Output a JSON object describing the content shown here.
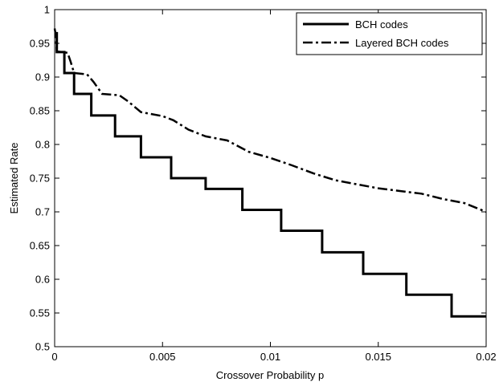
{
  "chart_data": {
    "type": "line",
    "title": "",
    "xlabel": "Crossover Probability p",
    "ylabel": "Estimated Rate",
    "xlim": [
      0,
      0.02
    ],
    "ylim": [
      0.5,
      1
    ],
    "x_ticks": [
      0,
      0.005,
      0.01,
      0.015,
      0.02
    ],
    "x_tick_labels": [
      "0",
      "0.005",
      "0.01",
      "0.015",
      "0.02"
    ],
    "y_ticks": [
      0.5,
      0.55,
      0.6,
      0.65,
      0.7,
      0.75,
      0.8,
      0.85,
      0.9,
      0.95,
      1
    ],
    "y_tick_labels": [
      "0.5",
      "0.55",
      "0.6",
      "0.65",
      "0.7",
      "0.75",
      "0.8",
      "0.85",
      "0.9",
      "0.95",
      "1"
    ],
    "grid": false,
    "legend_position": "top-right",
    "series": [
      {
        "name": "BCH codes",
        "style": "solid-step",
        "color": "#000000",
        "x": [
          0,
          0.0001,
          0.0001,
          0.00045,
          0.00045,
          0.0009,
          0.0009,
          0.0017,
          0.0017,
          0.0028,
          0.0028,
          0.004,
          0.004,
          0.0054,
          0.0054,
          0.007,
          0.007,
          0.0087,
          0.0087,
          0.0105,
          0.0105,
          0.0124,
          0.0124,
          0.0143,
          0.0143,
          0.0163,
          0.0163,
          0.0184,
          0.0184,
          0.02
        ],
        "y": [
          0.965,
          0.965,
          0.937,
          0.937,
          0.906,
          0.906,
          0.875,
          0.875,
          0.843,
          0.843,
          0.812,
          0.812,
          0.781,
          0.781,
          0.75,
          0.75,
          0.734,
          0.734,
          0.703,
          0.703,
          0.672,
          0.672,
          0.64,
          0.64,
          0.608,
          0.608,
          0.577,
          0.577,
          0.545,
          0.545
        ]
      },
      {
        "name": "Layered BCH codes",
        "style": "dash-dot",
        "color": "#000000",
        "x": [
          0,
          5e-05,
          0.0001,
          0.0006,
          0.00075,
          0.0009,
          0.0015,
          0.0018,
          0.0022,
          0.003,
          0.0034,
          0.004,
          0.005,
          0.0055,
          0.0062,
          0.007,
          0.008,
          0.009,
          0.01,
          0.011,
          0.012,
          0.013,
          0.014,
          0.015,
          0.016,
          0.017,
          0.018,
          0.019,
          0.02
        ],
        "y": [
          0.972,
          0.963,
          0.938,
          0.936,
          0.922,
          0.906,
          0.904,
          0.893,
          0.875,
          0.873,
          0.864,
          0.848,
          0.842,
          0.836,
          0.822,
          0.812,
          0.806,
          0.789,
          0.78,
          0.769,
          0.757,
          0.747,
          0.741,
          0.735,
          0.731,
          0.727,
          0.719,
          0.713,
          0.7
        ]
      }
    ]
  }
}
